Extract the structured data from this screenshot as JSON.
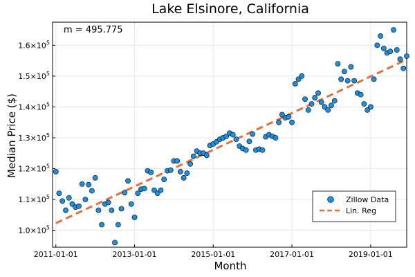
{
  "chart_data": {
    "type": "scatter",
    "title": "Lake Elsinore, California",
    "xlabel": "Month",
    "ylabel": "Median Price ($)",
    "annotation": "m = 495.775",
    "x_start": "2011-01",
    "x_step": "1 month",
    "xlim": [
      "2010-12",
      "2019-12"
    ],
    "ylim": [
      94500,
      167500
    ],
    "x_ticks": [
      "2011-01-01",
      "2013-01-01",
      "2015-01-01",
      "2017-01-01",
      "2019-01-01"
    ],
    "y_ticks": [
      {
        "value": 100000,
        "mantissa": "1.0",
        "exp": "5"
      },
      {
        "value": 110000,
        "mantissa": "1.1",
        "exp": "5"
      },
      {
        "value": 120000,
        "mantissa": "1.2",
        "exp": "5"
      },
      {
        "value": 130000,
        "mantissa": "1.3",
        "exp": "5"
      },
      {
        "value": 140000,
        "mantissa": "1.4",
        "exp": "5"
      },
      {
        "value": 150000,
        "mantissa": "1.5",
        "exp": "5"
      },
      {
        "value": 160000,
        "mantissa": "1.6",
        "exp": "5"
      }
    ],
    "x_tick_base": "×10",
    "grid": true,
    "legend_position": "bottom-right",
    "series": [
      {
        "name": "Zillow Data",
        "kind": "scatter",
        "color": "#1f8fdc",
        "values": [
          119000,
          112000,
          109500,
          106500,
          110500,
          108500,
          107500,
          107800,
          115000,
          110000,
          114800,
          112800,
          117000,
          106500,
          101800,
          108500,
          109000,
          106500,
          96000,
          101800,
          107000,
          112200,
          116000,
          108500,
          104200,
          112000,
          113300,
          113500,
          119300,
          118800,
          113000,
          112000,
          113000,
          116500,
          119300,
          119500,
          122500,
          122500,
          119000,
          117000,
          118500,
          121500,
          124000,
          125700,
          125000,
          125000,
          124300,
          127500,
          128000,
          128700,
          129500,
          130000,
          130500,
          131500,
          131000,
          129500,
          127300,
          126500,
          126000,
          128800,
          131200,
          126000,
          126300,
          126000,
          130300,
          131000,
          130500,
          130000,
          135000,
          137500,
          136500,
          136800,
          135000,
          147500,
          149000,
          150000,
          142500,
          139000,
          141000,
          143000,
          144500,
          141500,
          140000,
          139000,
          140500,
          142000,
          154000,
          149000,
          151500,
          148500,
          153000,
          148500,
          144500,
          144000,
          141000,
          139000,
          140000,
          149000,
          160000,
          163000,
          159000,
          157500,
          158000,
          165000,
          158500,
          155500,
          152500,
          156500
        ]
      },
      {
        "name": "Lin. Reg",
        "kind": "line",
        "color": "#e1703f",
        "slope_per_month": 495.775,
        "start_value": 102300
      }
    ]
  }
}
